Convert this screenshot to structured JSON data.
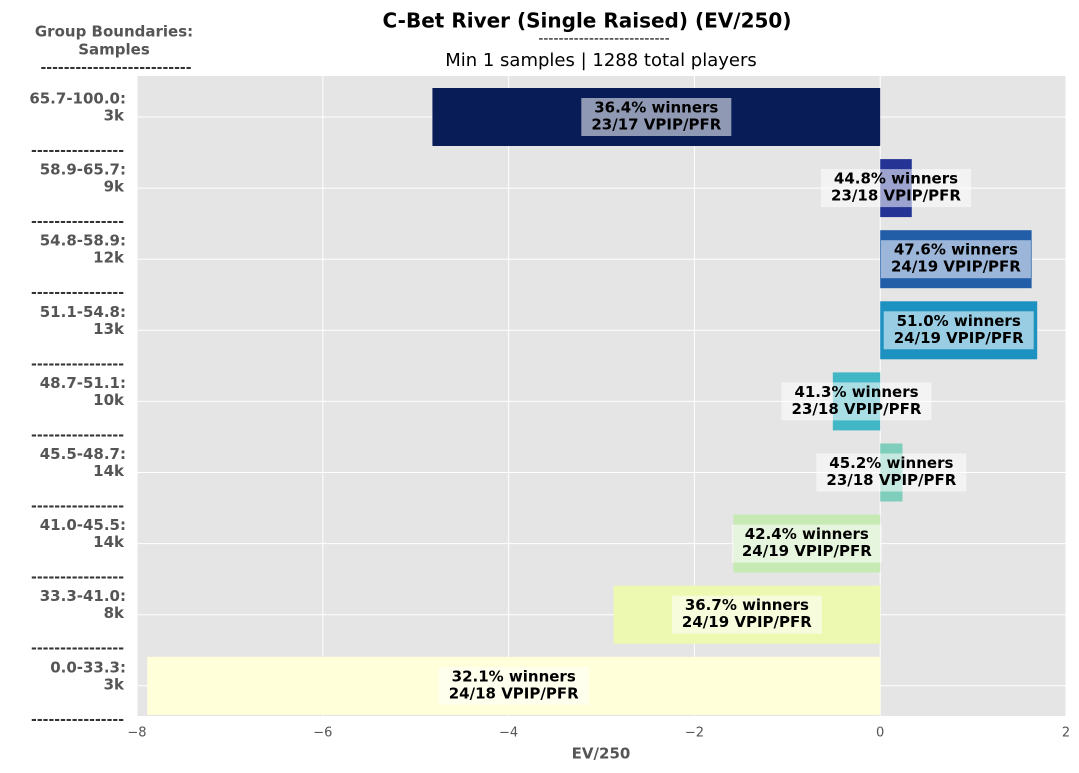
{
  "chart_data": {
    "type": "bar",
    "orientation": "horizontal",
    "title": "C-Bet River (Single Raised) (EV/250)",
    "title_underline": "--------------------------",
    "subtitle": "Min 1 samples | 1288 total players",
    "y_header": [
      "Group Boundaries:",
      "Samples",
      "--------------------------"
    ],
    "xlabel": "EV/250",
    "separator": "----------------",
    "categories": [
      "65.7-100.0:",
      "58.9-65.7:",
      "54.8-58.9:",
      "51.1-54.8:",
      "48.7-51.1:",
      "45.5-48.7:",
      "41.0-45.5:",
      "33.3-41.0:",
      "0.0-33.3:"
    ],
    "samples": [
      "3k",
      "9k",
      "12k",
      "13k",
      "10k",
      "14k",
      "14k",
      "8k",
      "3k"
    ],
    "values": [
      -4.82,
      0.34,
      1.63,
      1.69,
      -0.51,
      0.24,
      -1.58,
      -2.87,
      -7.89
    ],
    "colors": [
      "#081d58",
      "#253494",
      "#225ea8",
      "#1d91c0",
      "#41b6c4",
      "#7fcdbb",
      "#c7e9b4",
      "#edf8b1",
      "#ffffd9"
    ],
    "winners": [
      "36.4% winners",
      "44.8% winners",
      "47.6% winners",
      "51.0% winners",
      "41.3% winners",
      "45.2% winners",
      "42.4% winners",
      "36.7% winners",
      "32.1% winners"
    ],
    "vpip_pfr": [
      "23/17 VPIP/PFR",
      "23/18 VPIP/PFR",
      "24/19 VPIP/PFR",
      "24/19 VPIP/PFR",
      "23/18 VPIP/PFR",
      "23/18 VPIP/PFR",
      "24/19 VPIP/PFR",
      "24/19 VPIP/PFR",
      "24/18 VPIP/PFR"
    ],
    "xlim": [
      -8,
      2
    ],
    "xticks": [
      {
        "value": -8,
        "label": "−8"
      },
      {
        "value": -6,
        "label": "−6"
      },
      {
        "value": -4,
        "label": "−4"
      },
      {
        "value": -2,
        "label": "−2"
      },
      0,
      2
    ],
    "grid": true
  }
}
